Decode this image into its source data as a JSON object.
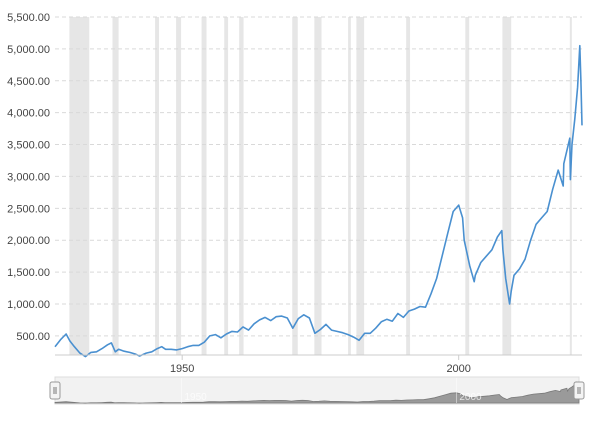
{
  "chart_data": {
    "type": "line",
    "title": "",
    "xlabel": "",
    "ylabel": "",
    "x_range": [
      1927,
      2022.3
    ],
    "ylim": [
      200,
      5500
    ],
    "y_ticks": [
      "500.00",
      "1,000.00",
      "1,500.00",
      "2,000.00",
      "2,500.00",
      "3,000.00",
      "3,500.00",
      "4,000.00",
      "4,500.00",
      "5,000.00",
      "5,500.00"
    ],
    "y_tick_values": [
      500,
      1000,
      1500,
      2000,
      2500,
      3000,
      3500,
      4000,
      4500,
      5000,
      5500
    ],
    "x_ticks": [
      "1950",
      "2000"
    ],
    "x_tick_values": [
      1950,
      2000
    ],
    "grid": "horizontal dashed",
    "legend": "none",
    "line_color": "#4a90d0",
    "recession_color": "#e6e6e6",
    "recessions": [
      [
        1929.6,
        1933.2
      ],
      [
        1937.4,
        1938.5
      ],
      [
        1945.1,
        1945.8
      ],
      [
        1948.9,
        1949.8
      ],
      [
        1953.5,
        1954.4
      ],
      [
        1957.6,
        1958.3
      ],
      [
        1960.3,
        1961.1
      ],
      [
        1969.9,
        1970.9
      ],
      [
        1973.9,
        1975.2
      ],
      [
        1980.0,
        1980.5
      ],
      [
        1981.5,
        1982.9
      ],
      [
        1990.5,
        1991.2
      ],
      [
        2001.2,
        2001.9
      ],
      [
        2007.9,
        2009.5
      ],
      [
        2020.1,
        2020.4
      ]
    ],
    "series": [
      {
        "x": [
          1927,
          1928,
          1929,
          1929.7,
          1930.5,
          1931.5,
          1932.5,
          1933.5,
          1934.5,
          1935.5,
          1936.5,
          1937.2,
          1937.9,
          1938.5,
          1939.5,
          1940.5,
          1941.5,
          1942.3,
          1943.5,
          1944.5,
          1945.5,
          1946.3,
          1947,
          1948,
          1949,
          1950,
          1951,
          1952,
          1953,
          1954,
          1955,
          1956,
          1957,
          1958,
          1959,
          1960,
          1961,
          1962,
          1963,
          1964,
          1965,
          1966,
          1967,
          1968,
          1969,
          1970,
          1971,
          1972,
          1973,
          1974,
          1975,
          1976,
          1977,
          1978,
          1979,
          1980,
          1981,
          1982,
          1983,
          1984,
          1985,
          1986,
          1987,
          1988,
          1989,
          1990,
          1991,
          1992,
          1993,
          1994,
          1995,
          1996,
          1997,
          1998,
          1999,
          2000,
          2000.7,
          2001,
          2002,
          2002.8,
          2003,
          2004,
          2005,
          2006,
          2007,
          2007.8,
          2008,
          2008.5,
          2009.2,
          2009.5,
          2010,
          2011,
          2012,
          2013,
          2014,
          2015,
          2016,
          2017,
          2018,
          2018.9,
          2019,
          2020.1,
          2020.2,
          2020.5,
          2021,
          2021.5,
          2021.9,
          2022.1,
          2022.3
        ],
        "values": [
          330,
          440,
          530,
          420,
          330,
          230,
          175,
          240,
          250,
          300,
          360,
          390,
          250,
          290,
          260,
          240,
          215,
          185,
          230,
          250,
          300,
          330,
          290,
          290,
          280,
          300,
          330,
          350,
          350,
          400,
          500,
          520,
          470,
          530,
          570,
          560,
          640,
          590,
          690,
          750,
          790,
          740,
          800,
          810,
          780,
          620,
          770,
          830,
          780,
          540,
          600,
          680,
          590,
          570,
          550,
          520,
          480,
          430,
          540,
          540,
          620,
          720,
          760,
          730,
          850,
          790,
          890,
          920,
          960,
          950,
          1160,
          1400,
          1750,
          2100,
          2450,
          2550,
          2350,
          2000,
          1600,
          1350,
          1450,
          1650,
          1750,
          1850,
          2050,
          2150,
          1850,
          1400,
          1000,
          1200,
          1450,
          1550,
          1700,
          2000,
          2250,
          2350,
          2450,
          2800,
          3100,
          2850,
          3200,
          3600,
          2950,
          3500,
          3900,
          4400,
          5050,
          4500,
          3800
        ]
      }
    ]
  }
}
